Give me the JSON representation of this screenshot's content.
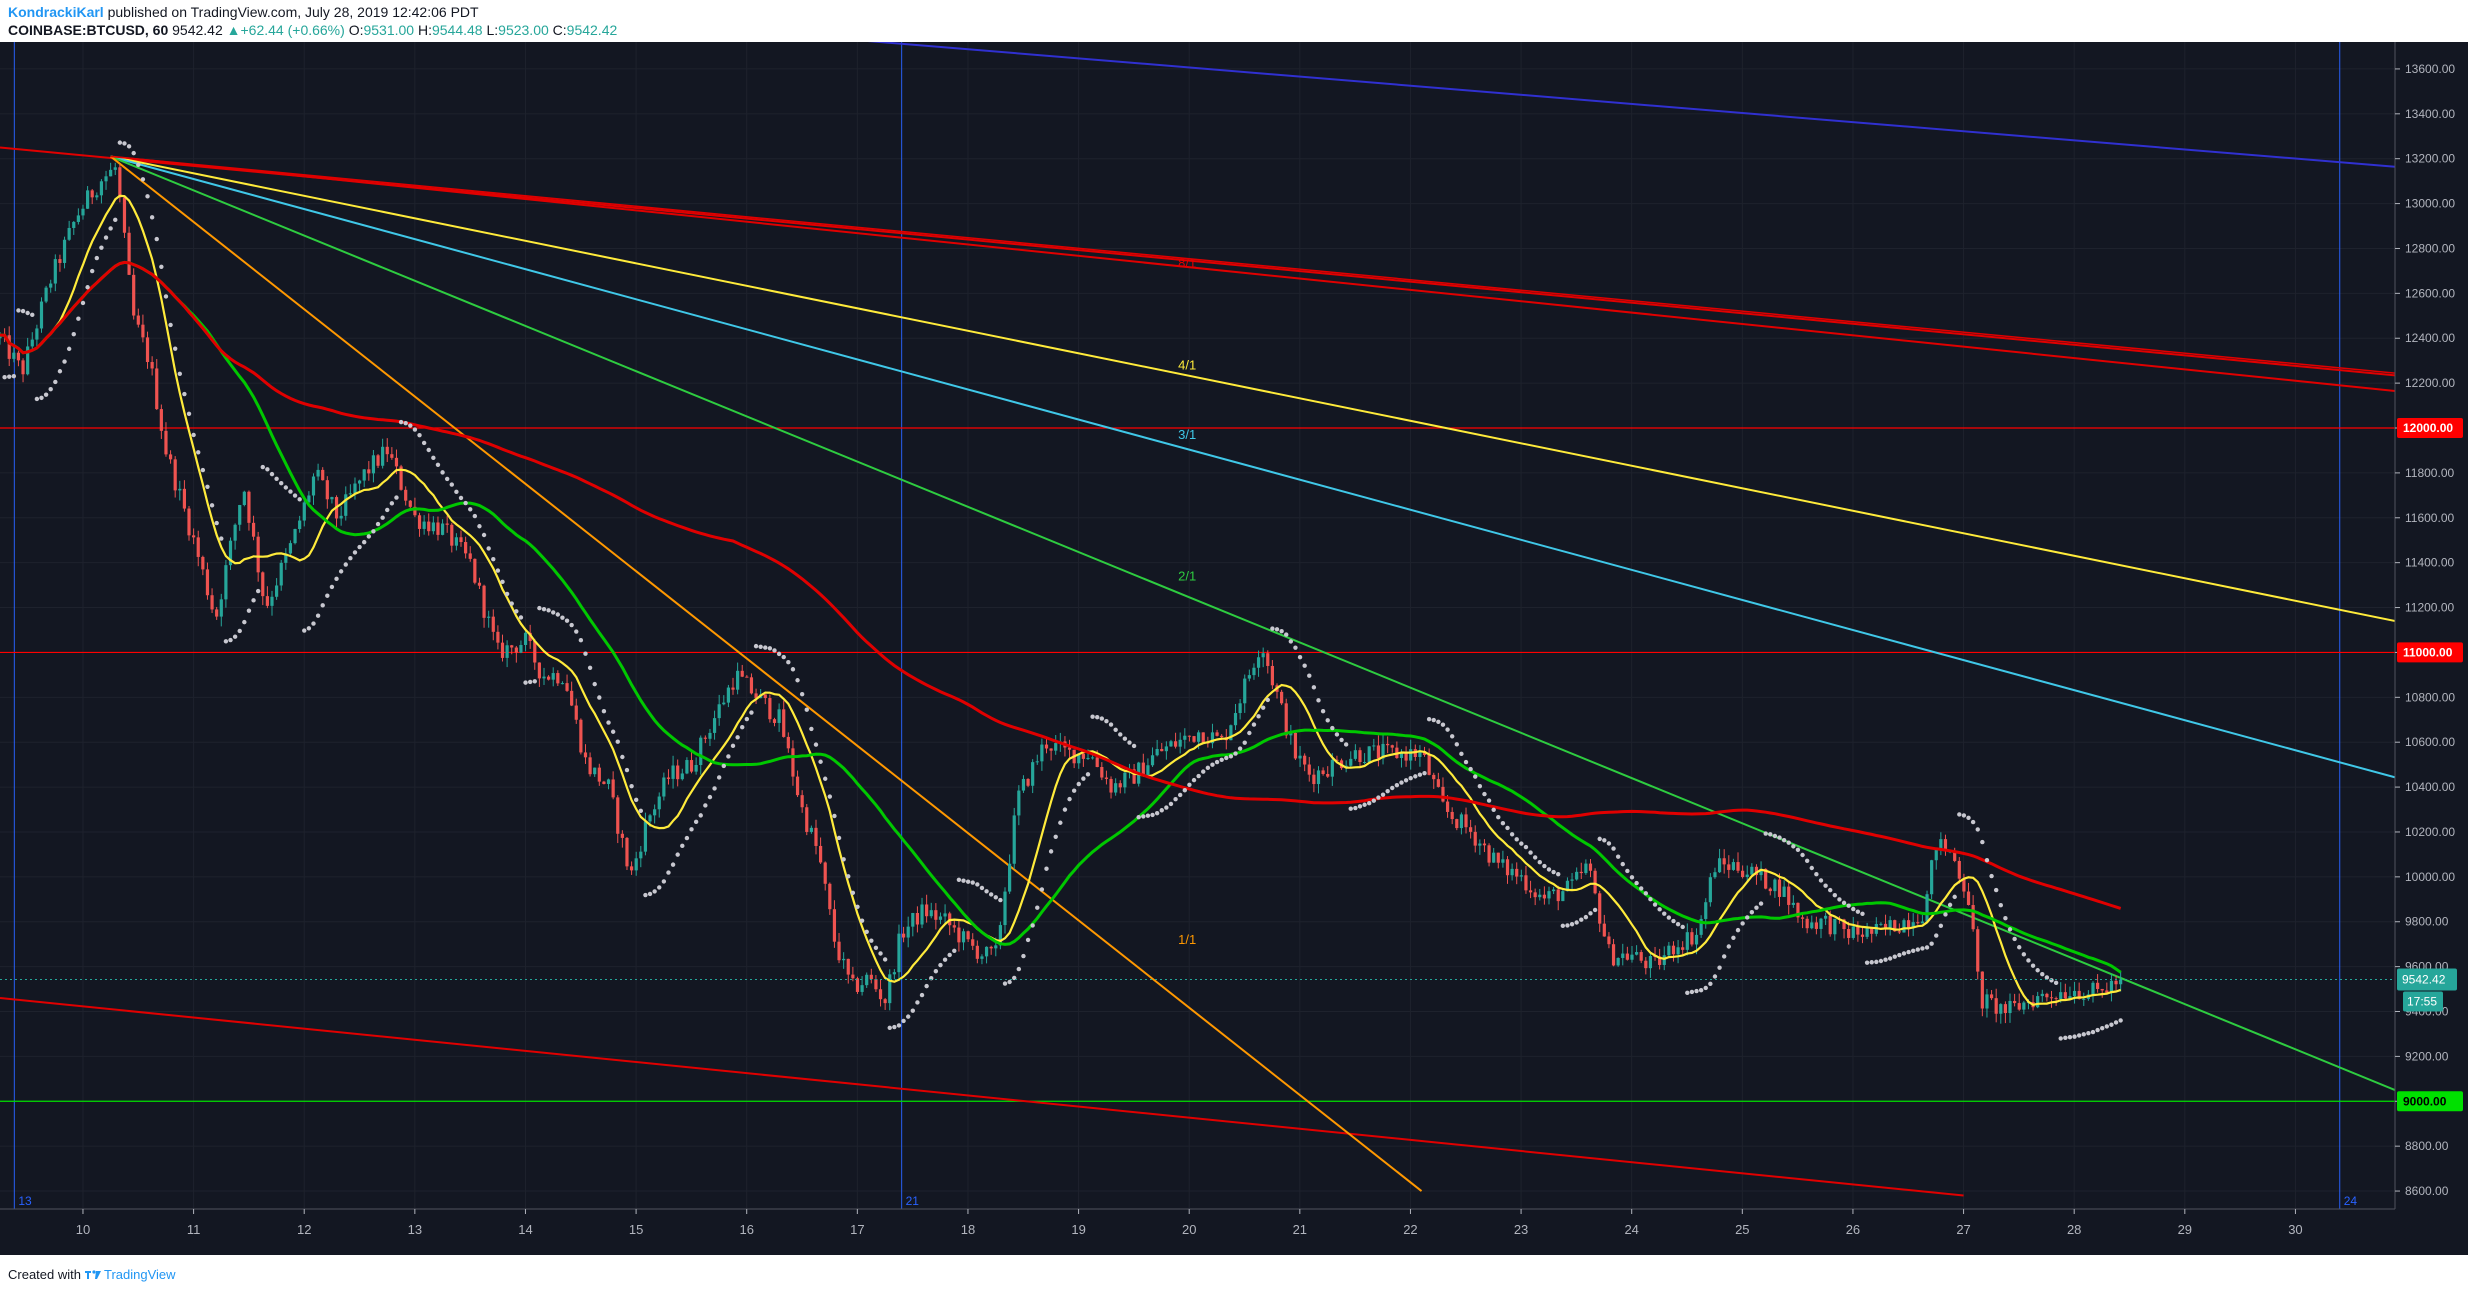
{
  "header": {
    "author": "KondrackiKarl",
    "published": "published on TradingView.com, July 28, 2019 12:42:06 PDT",
    "symbol": "COINBASE:BTCUSD, 60",
    "last": "9542.42",
    "change_arrow": "▲",
    "change": "+62.44 (+0.66%)",
    "o_label": "O:",
    "o": "9531.00",
    "h_label": "H:",
    "h": "9544.48",
    "l_label": "L:",
    "l": "9523.00",
    "c_label": "C:",
    "c": "9542.42"
  },
  "footer": {
    "created_with": "Created with",
    "brand": "TradingView",
    "logo_icon": "tradingview-logo-icon"
  },
  "colors": {
    "background": "#131722",
    "grid": "#1e222d",
    "up": "#26a69a",
    "down": "#ef5350",
    "ma_fast": "#ffeb3b",
    "ma_mid": "#00c800",
    "ma_slow": "#e00000",
    "psar": "#c8c8d0",
    "fan_1x1": "#ff9800",
    "fan_2x1": "#2ecc40",
    "fan_3x1": "#40c8e8",
    "fan_4x1": "#ffeb3b",
    "fan_8x1": "#e00000",
    "channel": "#e00000",
    "upper_trend": "#3030d0",
    "level_red": "#ff0000",
    "level_green": "#00e000"
  },
  "chart_data": {
    "type": "candlestick",
    "symbol": "COINBASE:BTCUSD",
    "interval": "60",
    "x_axis": {
      "labels": [
        "10",
        "11",
        "12",
        "13",
        "14",
        "15",
        "16",
        "17",
        "18",
        "19",
        "20",
        "21",
        "22",
        "23",
        "24",
        "25",
        "26",
        "27",
        "28",
        "29",
        "30"
      ],
      "start_day": 9.25,
      "end_day": 30.9
    },
    "y_axis": {
      "min": 8520,
      "max": 13720,
      "ticks": [
        8600,
        8800,
        9000,
        9200,
        9400,
        9600,
        9800,
        10000,
        10200,
        10400,
        10600,
        10800,
        11000,
        11200,
        11400,
        11600,
        11800,
        12000,
        12200,
        12400,
        12600,
        12800,
        13000,
        13200,
        13400,
        13600
      ]
    },
    "price_anchors": [
      [
        9.25,
        12400
      ],
      [
        9.45,
        12250
      ],
      [
        9.7,
        12650
      ],
      [
        9.95,
        12950
      ],
      [
        10.15,
        13100
      ],
      [
        10.3,
        13160
      ],
      [
        10.45,
        12500
      ],
      [
        10.6,
        12300
      ],
      [
        10.75,
        11900
      ],
      [
        11.0,
        11500
      ],
      [
        11.2,
        11150
      ],
      [
        11.45,
        11750
      ],
      [
        11.65,
        11200
      ],
      [
        11.9,
        11500
      ],
      [
        12.1,
        11800
      ],
      [
        12.3,
        11600
      ],
      [
        12.55,
        11800
      ],
      [
        12.75,
        11900
      ],
      [
        13.0,
        11600
      ],
      [
        13.25,
        11550
      ],
      [
        13.5,
        11400
      ],
      [
        13.75,
        11000
      ],
      [
        14.0,
        11050
      ],
      [
        14.15,
        10900
      ],
      [
        14.35,
        10900
      ],
      [
        14.55,
        10500
      ],
      [
        14.75,
        10400
      ],
      [
        14.95,
        10000
      ],
      [
        15.1,
        10250
      ],
      [
        15.3,
        10450
      ],
      [
        15.5,
        10500
      ],
      [
        15.7,
        10700
      ],
      [
        15.9,
        10900
      ],
      [
        16.1,
        10800
      ],
      [
        16.3,
        10700
      ],
      [
        16.5,
        10300
      ],
      [
        16.65,
        10100
      ],
      [
        16.8,
        9700
      ],
      [
        16.95,
        9500
      ],
      [
        17.1,
        9550
      ],
      [
        17.25,
        9450
      ],
      [
        17.4,
        9750
      ],
      [
        17.6,
        9850
      ],
      [
        17.8,
        9800
      ],
      [
        18.0,
        9700
      ],
      [
        18.15,
        9650
      ],
      [
        18.25,
        9650
      ],
      [
        18.45,
        10350
      ],
      [
        18.7,
        10600
      ],
      [
        18.9,
        10550
      ],
      [
        19.1,
        10550
      ],
      [
        19.3,
        10400
      ],
      [
        19.5,
        10450
      ],
      [
        19.7,
        10550
      ],
      [
        19.9,
        10600
      ],
      [
        20.1,
        10650
      ],
      [
        20.3,
        10600
      ],
      [
        20.5,
        10850
      ],
      [
        20.65,
        11050
      ],
      [
        20.8,
        10800
      ],
      [
        20.95,
        10550
      ],
      [
        21.1,
        10450
      ],
      [
        21.3,
        10500
      ],
      [
        21.5,
        10550
      ],
      [
        21.7,
        10550
      ],
      [
        21.95,
        10550
      ],
      [
        22.1,
        10550
      ],
      [
        22.3,
        10300
      ],
      [
        22.55,
        10200
      ],
      [
        22.8,
        10050
      ],
      [
        23.0,
        10000
      ],
      [
        23.2,
        9900
      ],
      [
        23.45,
        9950
      ],
      [
        23.6,
        10050
      ],
      [
        23.8,
        9650
      ],
      [
        24.0,
        9650
      ],
      [
        24.2,
        9600
      ],
      [
        24.4,
        9700
      ],
      [
        24.6,
        9750
      ],
      [
        24.75,
        10050
      ],
      [
        24.95,
        10050
      ],
      [
        25.15,
        10000
      ],
      [
        25.35,
        9950
      ],
      [
        25.55,
        9800
      ],
      [
        25.75,
        9800
      ],
      [
        25.95,
        9750
      ],
      [
        26.2,
        9750
      ],
      [
        26.45,
        9800
      ],
      [
        26.65,
        9850
      ],
      [
        26.75,
        10150
      ],
      [
        26.9,
        10100
      ],
      [
        27.05,
        9900
      ],
      [
        27.15,
        9450
      ],
      [
        27.4,
        9400
      ],
      [
        27.6,
        9450
      ],
      [
        27.8,
        9480
      ],
      [
        28.0,
        9500
      ],
      [
        28.2,
        9480
      ],
      [
        28.42,
        9542.42
      ]
    ],
    "current_price": 9542.42,
    "price_label_time": "17:55",
    "overlays": [
      {
        "name": "",
        "kind": "moving-average",
        "role": "fast",
        "length": 12
      },
      {
        "name": "",
        "kind": "moving-average",
        "role": "mid",
        "length": 40
      },
      {
        "name": "",
        "kind": "moving-average",
        "role": "slow",
        "length": 160
      }
    ],
    "psar": {
      "kind": "parabolic-sar"
    },
    "vertical_lines": [
      {
        "x": 9.38,
        "label": "13"
      },
      {
        "x": 17.4,
        "label": "21"
      },
      {
        "x": 30.4,
        "label": "24"
      }
    ],
    "horizontal_levels": [
      {
        "price": 12000,
        "label": "12000.00",
        "color": "red"
      },
      {
        "price": 11000,
        "label": "11000.00",
        "color": "red"
      },
      {
        "price": 9000,
        "label": "9000.00",
        "color": "green"
      }
    ],
    "gann_fan": {
      "origin": [
        10.25,
        13210
      ],
      "rays": [
        {
          "label": "8/1",
          "end": [
            31.0,
            12160
          ],
          "label_at": [
            19.9,
            12715
          ],
          "color": "fan_8x1"
        },
        {
          "label": "4/1",
          "end": [
            31.0,
            11130
          ],
          "label_at": [
            19.9,
            12260
          ],
          "color": "fan_4x1"
        },
        {
          "label": "3/1",
          "end": [
            31.0,
            10430
          ],
          "label_at": [
            19.9,
            11950
          ],
          "color": "fan_3x1"
        },
        {
          "label": "2/1",
          "end": [
            31.0,
            9030
          ],
          "label_at": [
            19.9,
            11320
          ],
          "color": "fan_2x1"
        },
        {
          "label": "1/1",
          "end": [
            22.1,
            8600
          ],
          "label_at": [
            19.9,
            9700
          ],
          "color": "fan_1x1"
        }
      ]
    },
    "trendlines": [
      {
        "from": [
          9.25,
          13250
        ],
        "to": [
          31.0,
          12230
        ],
        "color": "channel"
      },
      {
        "from": [
          9.25,
          9460
        ],
        "to": [
          27.0,
          8580
        ],
        "color": "channel"
      },
      {
        "from": [
          14.0,
          13850
        ],
        "to": [
          31.0,
          13160
        ],
        "color": "upper_trend"
      }
    ],
    "live_price_line": {
      "price": 9542.42,
      "style": "dotted"
    }
  }
}
